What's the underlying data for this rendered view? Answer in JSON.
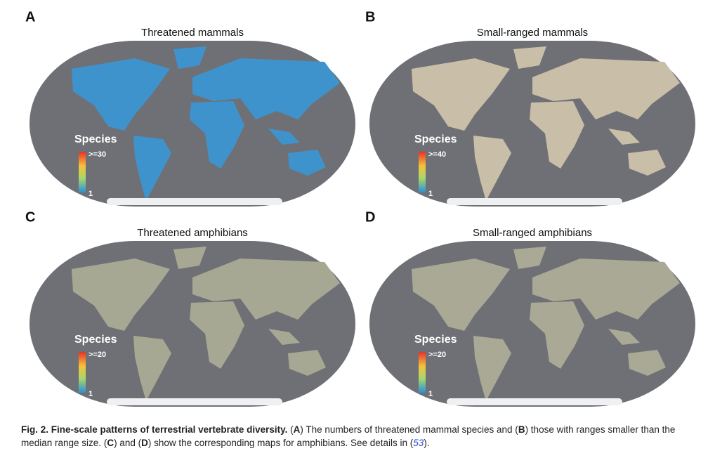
{
  "panels": [
    {
      "letter": "A",
      "title": "Threatened mammals",
      "legend_title": "Species",
      "legend_max": ">=30",
      "legend_min": "1"
    },
    {
      "letter": "B",
      "title": "Small-ranged mammals",
      "legend_title": "Species",
      "legend_max": ">=40",
      "legend_min": "1"
    },
    {
      "letter": "C",
      "title": "Threatened amphibians",
      "legend_title": "Species",
      "legend_max": ">=20",
      "legend_min": "1"
    },
    {
      "letter": "D",
      "title": "Small-ranged amphibians",
      "legend_title": "Species",
      "legend_max": ">=20",
      "legend_min": "1"
    }
  ],
  "caption": {
    "parts": [
      "Fig. 2. Fine-scale patterns of terrestrial vertebrate diversity.",
      " (",
      "A",
      ") The numbers of threatened mammal species and (",
      "B",
      ") those with ranges smaller than the median range size. (",
      "C",
      ") and (",
      "D",
      ") show the corresponding maps for amphibians. See details in (",
      "53",
      ")."
    ]
  }
}
